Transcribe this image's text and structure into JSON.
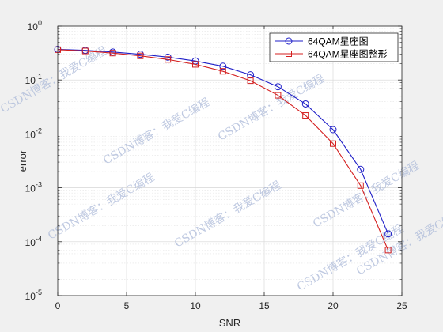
{
  "chart_data": {
    "type": "line",
    "xlabel": "SNR",
    "ylabel": "error",
    "xlim": [
      0,
      25
    ],
    "ylim": [
      1e-05,
      1
    ],
    "yscale": "log",
    "grid": true,
    "minor_grid": true,
    "legend_position": "top-right",
    "x_ticks": [
      "0",
      "5",
      "10",
      "15",
      "20",
      "25"
    ],
    "y_tick_exponents": [
      "0",
      "-1",
      "-2",
      "-3",
      "-4",
      "-5"
    ],
    "y_tick_base": "10",
    "x": [
      0,
      2,
      4,
      6,
      8,
      10,
      12,
      14,
      16,
      18,
      20,
      22,
      24
    ],
    "series": [
      {
        "name": "64QAM星座图",
        "color": "#1f1fc8",
        "marker": "circle",
        "values": [
          0.37,
          0.355,
          0.33,
          0.3,
          0.265,
          0.225,
          0.18,
          0.125,
          0.075,
          0.036,
          0.012,
          0.0022,
          0.00014
        ]
      },
      {
        "name": "64QAM星座图整形",
        "color": "#d42020",
        "marker": "square",
        "values": [
          0.365,
          0.345,
          0.315,
          0.28,
          0.24,
          0.195,
          0.145,
          0.097,
          0.052,
          0.022,
          0.0066,
          0.0011,
          7e-05
        ]
      }
    ]
  },
  "watermark": {
    "text": "CSDN博客：我爱C编程",
    "color": "#aab8d8"
  }
}
